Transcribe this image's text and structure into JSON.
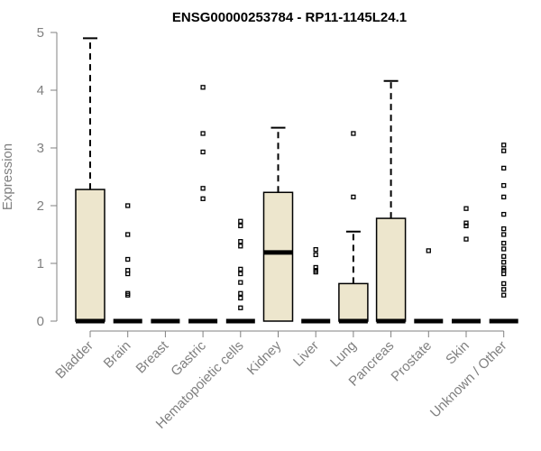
{
  "chart_data": {
    "type": "box",
    "title": "ENSG00000253784 - RP11-1145L24.1",
    "xlabel": "",
    "ylabel": "Expression",
    "ylim": [
      0,
      5
    ],
    "yticks": [
      0,
      1,
      2,
      3,
      4,
      5
    ],
    "grid": false,
    "legend": "none",
    "colors": {
      "box_fill": "#ede6cd",
      "stroke": "#000000",
      "axis_text": "#808080"
    },
    "categories": [
      "Bladder",
      "Brain",
      "Breast",
      "Gastric",
      "Hematopoietic cells",
      "Kidney",
      "Liver",
      "Lung",
      "Pancreas",
      "Prostate",
      "Skin",
      "Unknown / Other"
    ],
    "boxes": [
      {
        "q1": 0,
        "median": 0,
        "q3": 2.28,
        "whisker_low": 0,
        "whisker_high": 4.9,
        "outliers": []
      },
      {
        "q1": 0,
        "median": 0,
        "q3": 0,
        "whisker_low": 0,
        "whisker_high": 0,
        "outliers": [
          2.0,
          1.5,
          1.07,
          0.88,
          0.82,
          0.48,
          0.45
        ]
      },
      {
        "q1": 0,
        "median": 0,
        "q3": 0,
        "whisker_low": 0,
        "whisker_high": 0,
        "outliers": []
      },
      {
        "q1": 0,
        "median": 0,
        "q3": 0,
        "whisker_low": 0,
        "whisker_high": 0,
        "outliers": [
          4.05,
          3.25,
          2.93,
          2.3,
          2.12
        ]
      },
      {
        "q1": 0,
        "median": 0,
        "q3": 0,
        "whisker_low": 0,
        "whisker_high": 0,
        "outliers": [
          1.73,
          1.65,
          1.38,
          1.3,
          0.9,
          0.82,
          0.67,
          0.48,
          0.4,
          0.23
        ]
      },
      {
        "q1": 0,
        "median": 1.19,
        "q3": 2.23,
        "whisker_low": 0,
        "whisker_high": 3.35,
        "outliers": []
      },
      {
        "q1": 0,
        "median": 0,
        "q3": 0,
        "whisker_low": 0,
        "whisker_high": 0,
        "outliers": [
          1.24,
          1.15,
          0.93,
          0.88,
          0.85
        ]
      },
      {
        "q1": 0,
        "median": 0,
        "q3": 0.65,
        "whisker_low": 0,
        "whisker_high": 1.55,
        "outliers": [
          3.25,
          2.15
        ]
      },
      {
        "q1": 0,
        "median": 0,
        "q3": 1.78,
        "whisker_low": 0,
        "whisker_high": 4.16,
        "outliers": []
      },
      {
        "q1": 0,
        "median": 0,
        "q3": 0,
        "whisker_low": 0,
        "whisker_high": 0,
        "outliers": [
          1.22
        ]
      },
      {
        "q1": 0,
        "median": 0,
        "q3": 0,
        "whisker_low": 0,
        "whisker_high": 0,
        "outliers": [
          1.95,
          1.7,
          1.65,
          1.42
        ]
      },
      {
        "q1": 0,
        "median": 0,
        "q3": 0,
        "whisker_low": 0,
        "whisker_high": 0,
        "outliers": [
          3.05,
          2.95,
          2.65,
          2.35,
          2.15,
          1.85,
          1.6,
          1.5,
          1.35,
          1.25,
          1.12,
          1.02,
          0.92,
          0.88,
          0.82,
          0.65,
          0.55,
          0.45
        ]
      }
    ]
  }
}
